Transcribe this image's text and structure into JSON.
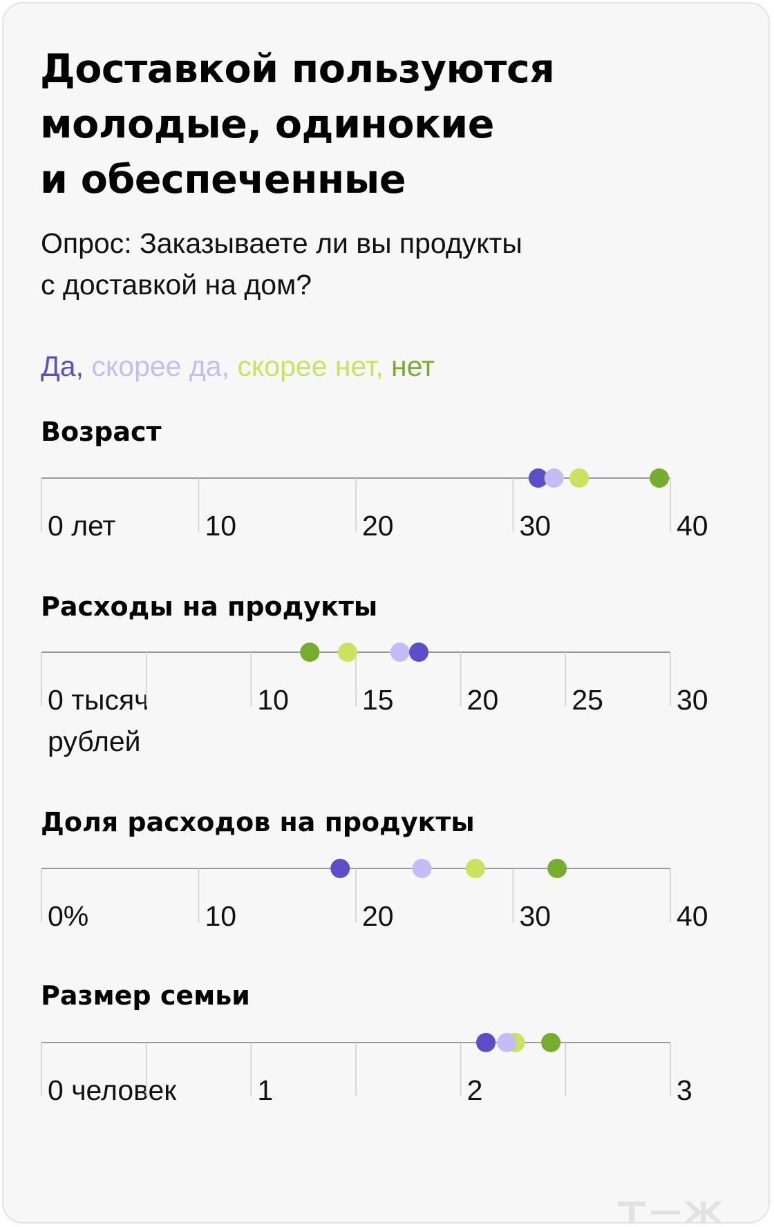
{
  "title": [
    "Доставкой пользуются",
    "молодые, одинокие",
    "и обеспеченные"
  ],
  "subtitle": [
    "Опрос: Заказываете ли вы продукты",
    "с доставкой на дом?"
  ],
  "legend": [
    {
      "text": "Да,",
      "color": "#5b4fc9"
    },
    {
      "text": "скорее да,",
      "color": "#c4bcf7"
    },
    {
      "text": "скорее нет,",
      "color": "#c9e35f"
    },
    {
      "text": "нет",
      "color": "#76ad2e"
    }
  ],
  "chart_data": [
    {
      "type": "dot",
      "title": "Возраст",
      "xlim": [
        0,
        40
      ],
      "ticks": [
        0,
        10,
        20,
        30,
        40
      ],
      "tick_labels": [
        [
          "0 лет"
        ],
        [
          "10"
        ],
        [
          "20"
        ],
        [
          "30"
        ],
        [
          "40"
        ]
      ],
      "series": [
        {
          "name": "Да",
          "value": 31.6
        },
        {
          "name": "скорее да",
          "value": 32.6
        },
        {
          "name": "скорее нет",
          "value": 34.2
        },
        {
          "name": "нет",
          "value": 39.3
        }
      ]
    },
    {
      "type": "dot",
      "title": "Расходы на продукты",
      "xlim": [
        0,
        30
      ],
      "ticks": [
        0,
        5,
        10,
        15,
        20,
        25,
        30
      ],
      "tick_labels": [
        [
          "0 тысяч",
          "рублей"
        ],
        [],
        [
          "10"
        ],
        [
          "15"
        ],
        [
          "20"
        ],
        [
          "25"
        ],
        [
          "30"
        ]
      ],
      "series": [
        {
          "name": "нет",
          "value": 12.8
        },
        {
          "name": "скорее нет",
          "value": 14.6
        },
        {
          "name": "скорее да",
          "value": 17.1
        },
        {
          "name": "Да",
          "value": 18.0
        }
      ]
    },
    {
      "type": "dot",
      "title": "Доля расходов на продукты",
      "xlim": [
        0,
        40
      ],
      "ticks": [
        0,
        10,
        20,
        30,
        40
      ],
      "tick_labels": [
        [
          "0%"
        ],
        [
          "10"
        ],
        [
          "20"
        ],
        [
          "30"
        ],
        [
          "40"
        ]
      ],
      "series": [
        {
          "name": "Да",
          "value": 19.0
        },
        {
          "name": "скорее да",
          "value": 24.2
        },
        {
          "name": "скорее нет",
          "value": 27.6
        },
        {
          "name": "нет",
          "value": 32.8
        }
      ]
    },
    {
      "type": "dot",
      "title": "Размер семьи",
      "xlim": [
        0,
        3
      ],
      "ticks": [
        0,
        0.5,
        1,
        1.5,
        2,
        2.5,
        3
      ],
      "tick_labels": [
        [
          "0 человек"
        ],
        [],
        [
          "1"
        ],
        [],
        [
          "2"
        ],
        [],
        [
          "3"
        ]
      ],
      "series": [
        {
          "name": "скорее нет",
          "value": 2.26
        },
        {
          "name": "нет",
          "value": 2.43
        },
        {
          "name": "скорее да",
          "value": 2.22
        },
        {
          "name": "Да",
          "value": 2.12
        }
      ]
    }
  ],
  "logo": "т—ж"
}
